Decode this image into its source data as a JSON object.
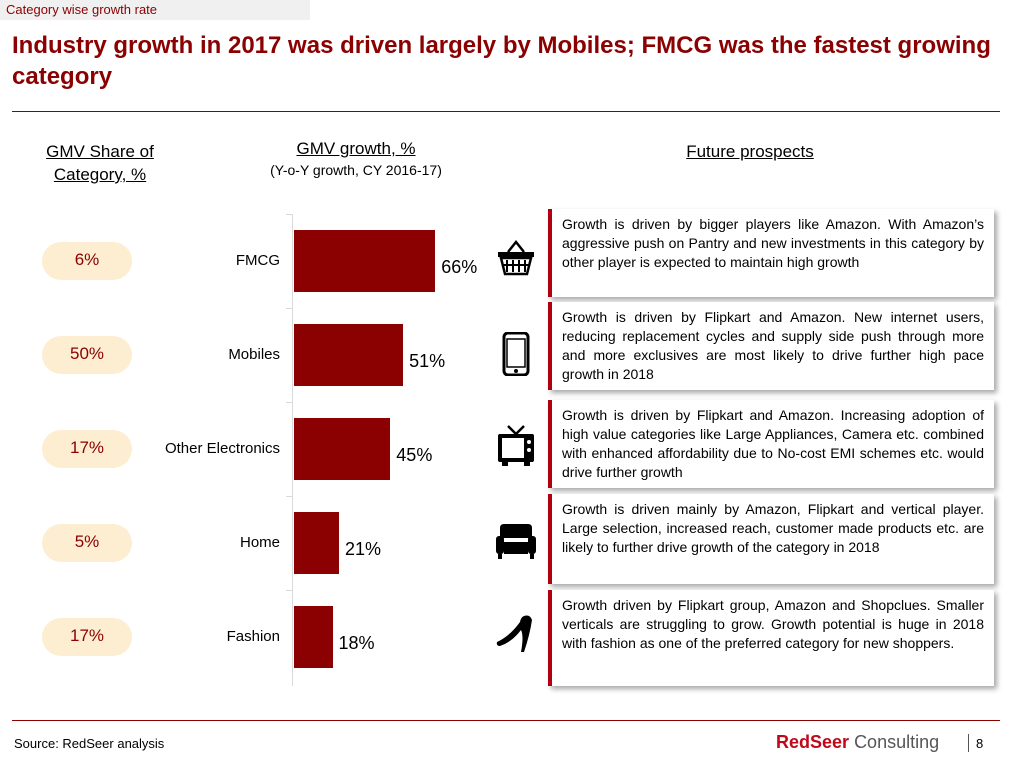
{
  "tag": "Category wise growth rate",
  "title": "Industry growth in 2017 was driven largely by Mobiles; FMCG was the fastest growing category",
  "headers": {
    "share": "GMV Share of Category, %",
    "growth": "GMV growth, %",
    "growth_sub": "(Y-o-Y growth, CY 2016-17)",
    "prospects": "Future prospects"
  },
  "chart_data": {
    "type": "bar",
    "orientation": "horizontal",
    "title": "GMV growth, %",
    "subtitle": "(Y-o-Y growth, CY 2016-17)",
    "categories": [
      "FMCG",
      "Mobiles",
      "Other Electronics",
      "Home",
      "Fashion"
    ],
    "values": [
      66,
      51,
      45,
      21,
      18
    ],
    "value_labels": [
      "66%",
      "51%",
      "45%",
      "21%",
      "18%"
    ],
    "gmv_share_labels": [
      "6%",
      "50%",
      "17%",
      "5%",
      "17%"
    ],
    "unit": "%",
    "grid": false,
    "color": "#8b0000"
  },
  "icons": [
    "shopping-basket-icon",
    "mobile-phone-icon",
    "television-icon",
    "armchair-icon",
    "high-heel-icon"
  ],
  "prospects": [
    "Growth is driven by bigger players like Amazon. With Amazon’s aggressive push on Pantry and new investments in this category by other player is expected to maintain high growth",
    "Growth is driven by Flipkart and Amazon. New internet users, reducing replacement cycles and supply side push through more and more exclusives are most likely to drive further high pace growth in 2018",
    "Growth is driven by Flipkart and Amazon. Increasing adoption of high value categories like Large Appliances, Camera etc. combined with enhanced affordability due to No-cost EMI schemes etc. would drive further growth",
    "Growth is driven mainly by Amazon, Flipkart and vertical player. Large selection, increased reach, customer made products etc. are likely to further drive growth of the category in 2018",
    "Growth driven by Flipkart group, Amazon and Shopclues. Smaller verticals are struggling to grow. Growth potential is huge in 2018 with fashion as one of the preferred category for new shoppers."
  ],
  "footer": {
    "source": "Source: RedSeer analysis",
    "logo_red": "RedSeer",
    "logo_grey": "Consulting",
    "page": "8"
  }
}
